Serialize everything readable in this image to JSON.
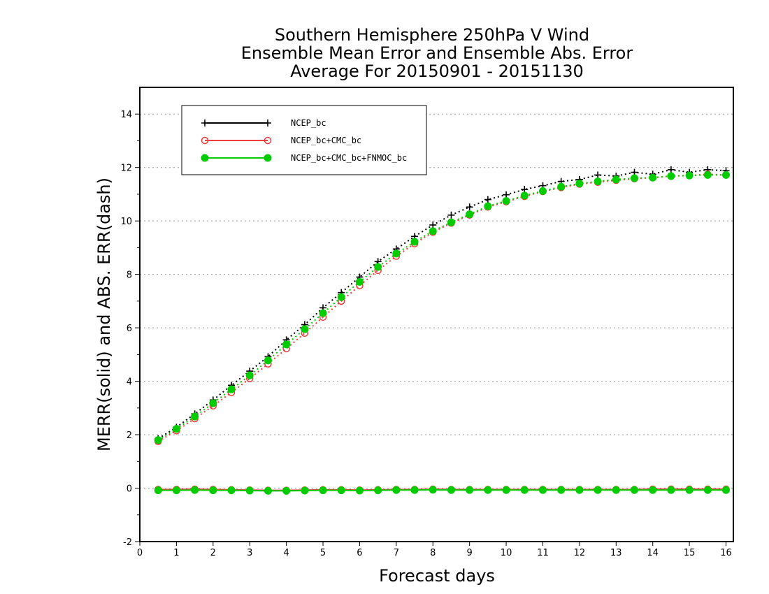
{
  "chart_data": {
    "type": "line",
    "title_lines": [
      "Southern Hemisphere 250hPa V Wind",
      "Ensemble Mean Error and Ensemble Abs. Error",
      "Average For 20150901 - 20151130"
    ],
    "xlabel": "Forecast days",
    "ylabel": "MERR(solid) and ABS. ERR(dash)",
    "xlim": [
      0,
      16.2
    ],
    "ylim": [
      -2,
      15
    ],
    "xticks": [
      "0",
      "1",
      "2",
      "3",
      "4",
      "5",
      "6",
      "7",
      "8",
      "9",
      "10",
      "11",
      "12",
      "13",
      "14",
      "15",
      "16"
    ],
    "yticks": [
      "-2",
      "0",
      "2",
      "4",
      "6",
      "8",
      "10",
      "12",
      "14"
    ],
    "grid": "horizontal dotted",
    "legend_position": "top-left",
    "x": [
      0.5,
      1.0,
      1.5,
      2.0,
      2.5,
      3.0,
      3.5,
      4.0,
      4.5,
      5.0,
      5.5,
      6.0,
      6.5,
      7.0,
      7.5,
      8.0,
      8.5,
      9.0,
      9.5,
      10.0,
      10.5,
      11.0,
      11.5,
      12.0,
      12.5,
      13.0,
      13.5,
      14.0,
      14.5,
      15.0,
      15.5,
      16.0
    ],
    "series": [
      {
        "name": "NCEP_bc",
        "color": "#000000",
        "marker": "plus",
        "abs_err": [
          1.85,
          2.28,
          2.78,
          3.3,
          3.85,
          4.38,
          4.92,
          5.55,
          6.12,
          6.75,
          7.32,
          7.9,
          8.48,
          8.95,
          9.42,
          9.85,
          10.22,
          10.52,
          10.8,
          10.98,
          11.18,
          11.32,
          11.48,
          11.55,
          11.72,
          11.68,
          11.82,
          11.75,
          11.92,
          11.82,
          11.92,
          11.88
        ],
        "mean_err": [
          -0.08,
          -0.07,
          -0.06,
          -0.07,
          -0.07,
          -0.09,
          -0.09,
          -0.09,
          -0.08,
          -0.07,
          -0.07,
          -0.08,
          -0.07,
          -0.06,
          -0.06,
          -0.05,
          -0.06,
          -0.06,
          -0.06,
          -0.06,
          -0.06,
          -0.06,
          -0.06,
          -0.06,
          -0.06,
          -0.06,
          -0.06,
          -0.06,
          -0.06,
          -0.06,
          -0.06,
          -0.06
        ]
      },
      {
        "name": "NCEP_bc+CMC_bc",
        "color": "#ee3b3b",
        "marker": "open-circle",
        "abs_err": [
          1.75,
          2.15,
          2.6,
          3.08,
          3.58,
          4.1,
          4.65,
          5.22,
          5.8,
          6.4,
          7.0,
          7.58,
          8.15,
          8.68,
          9.15,
          9.58,
          9.92,
          10.22,
          10.52,
          10.72,
          10.92,
          11.1,
          11.25,
          11.38,
          11.45,
          11.52,
          11.58,
          11.62,
          11.68,
          11.7,
          11.75,
          11.72
        ],
        "mean_err": [
          -0.05,
          -0.05,
          -0.04,
          -0.05,
          -0.06,
          -0.07,
          -0.08,
          -0.08,
          -0.07,
          -0.06,
          -0.06,
          -0.07,
          -0.06,
          -0.05,
          -0.05,
          -0.04,
          -0.05,
          -0.05,
          -0.05,
          -0.05,
          -0.05,
          -0.05,
          -0.05,
          -0.05,
          -0.05,
          -0.05,
          -0.05,
          -0.04,
          -0.04,
          -0.04,
          -0.04,
          -0.04
        ]
      },
      {
        "name": "NCEP_bc+CMC_bc+FNMOC_bc",
        "color": "#00cc00",
        "marker": "filled-circle",
        "abs_err": [
          1.8,
          2.22,
          2.68,
          3.18,
          3.7,
          4.22,
          4.78,
          5.38,
          5.95,
          6.55,
          7.15,
          7.72,
          8.28,
          8.78,
          9.22,
          9.62,
          9.95,
          10.25,
          10.55,
          10.75,
          10.95,
          11.12,
          11.28,
          11.4,
          11.48,
          11.55,
          11.6,
          11.62,
          11.68,
          11.7,
          11.72,
          11.72
        ],
        "mean_err": [
          -0.08,
          -0.08,
          -0.07,
          -0.08,
          -0.08,
          -0.09,
          -0.1,
          -0.1,
          -0.09,
          -0.08,
          -0.08,
          -0.09,
          -0.08,
          -0.07,
          -0.07,
          -0.06,
          -0.07,
          -0.07,
          -0.07,
          -0.07,
          -0.07,
          -0.07,
          -0.07,
          -0.07,
          -0.07,
          -0.07,
          -0.07,
          -0.07,
          -0.07,
          -0.07,
          -0.07,
          -0.07
        ]
      }
    ]
  }
}
